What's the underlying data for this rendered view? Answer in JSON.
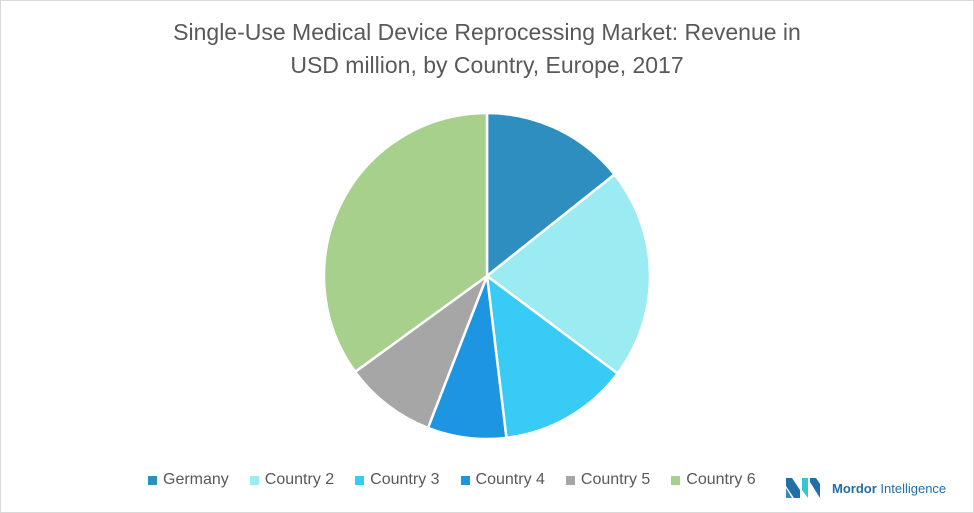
{
  "title_line1": "Single-Use Medical Device Reprocessing Market: Revenue in",
  "title_line2": "USD million, by Country, Europe, 2017",
  "legend": [
    {
      "label": "Germany",
      "color": "#2e8ebf"
    },
    {
      "label": "Country 2",
      "color": "#9aebf2"
    },
    {
      "label": "Country 3",
      "color": "#37cbf6"
    },
    {
      "label": "Country 4",
      "color": "#1d95e0"
    },
    {
      "label": "Country 5",
      "color": "#a6a6a6"
    },
    {
      "label": "Country 6",
      "color": "#a7d08c"
    }
  ],
  "logo": {
    "brand_bold": "Mordor",
    "brand_rest": " Intelligence"
  },
  "chart_data": {
    "type": "pie",
    "title": "Single-Use Medical Device Reprocessing Market: Revenue in USD million, by Country, Europe, 2017",
    "categories": [
      "Germany",
      "Country 2",
      "Country 3",
      "Country 4",
      "Country 5",
      "Country 6"
    ],
    "values": [
      14.3,
      20.9,
      12.9,
      7.8,
      9.1,
      35.0
    ],
    "unit": "percent share (estimated from slice angles)",
    "colors": [
      "#2e8ebf",
      "#9aebf2",
      "#37cbf6",
      "#1d95e0",
      "#a6a6a6",
      "#a7d08c"
    ],
    "legend_position": "bottom",
    "start_angle": "12 o'clock, clockwise"
  }
}
